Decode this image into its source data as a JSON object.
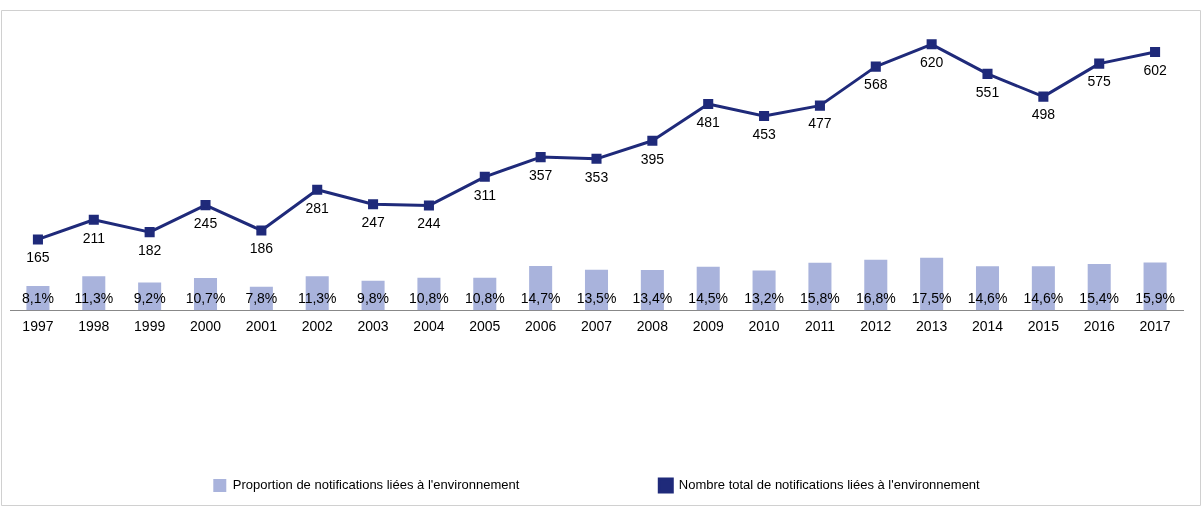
{
  "chart_data": {
    "type": "bar",
    "categories": [
      "1997",
      "1998",
      "1999",
      "2000",
      "2001",
      "2002",
      "2003",
      "2004",
      "2005",
      "2006",
      "2007",
      "2008",
      "2009",
      "2010",
      "2011",
      "2012",
      "2013",
      "2014",
      "2015",
      "2016",
      "2017"
    ],
    "series": [
      {
        "name": "Proportion de notifications liées à l'environnement",
        "axis": "y2",
        "color": "#a9b3dc",
        "values": [
          8.1,
          11.3,
          9.2,
          10.7,
          7.8,
          11.3,
          9.8,
          10.8,
          10.8,
          14.7,
          13.5,
          13.4,
          14.5,
          13.2,
          15.8,
          16.8,
          17.5,
          14.6,
          14.6,
          15.4,
          15.9
        ],
        "value_labels": [
          "8,1%",
          "11,3%",
          "9,2%",
          "10,7%",
          "7,8%",
          "11,3%",
          "9,8%",
          "10,8%",
          "10,8%",
          "14,7%",
          "13,5%",
          "13,4%",
          "14,5%",
          "13,2%",
          "15,8%",
          "16,8%",
          "17,5%",
          "14,6%",
          "14,6%",
          "15,4%",
          "15,9%"
        ]
      },
      {
        "name": "Nombre total de notifications liées à l'environnement",
        "type": "line",
        "axis": "y",
        "color": "#1f2a7a",
        "values": [
          165,
          211,
          182,
          245,
          186,
          281,
          247,
          244,
          311,
          357,
          353,
          395,
          481,
          453,
          477,
          568,
          620,
          551,
          498,
          575,
          602
        ],
        "value_labels": [
          "165",
          "211",
          "182",
          "245",
          "186",
          "281",
          "247",
          "244",
          "311",
          "357",
          "353",
          "395",
          "481",
          "453",
          "477",
          "568",
          "620",
          "551",
          "498",
          "575",
          "602"
        ]
      }
    ],
    "ylim": [
      0,
      700
    ],
    "y2lim": [
      0,
      100
    ],
    "tick_labels": "x",
    "grid": false,
    "legend": "bottom",
    "marker": "square",
    "line_style": "solid"
  }
}
